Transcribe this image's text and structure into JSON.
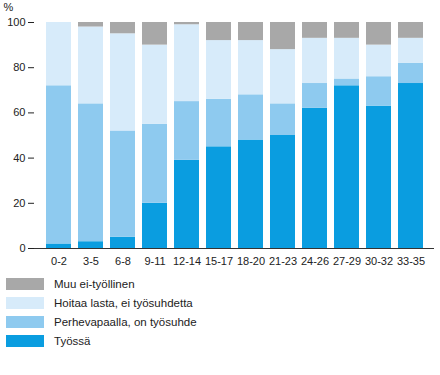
{
  "chart_data": {
    "type": "bar",
    "stacked": true,
    "legend": "bottom",
    "y_label": "%",
    "categories": [
      "0-2",
      "3-5",
      "6-8",
      "9-11",
      "12-14",
      "15-17",
      "18-20",
      "21-23",
      "24-26",
      "27-29",
      "30-32",
      "33-35"
    ],
    "series": [
      {
        "name": "Työssä",
        "color": "#0a9de0",
        "values": [
          2,
          3,
          5,
          20,
          39,
          45,
          48,
          50,
          62,
          72,
          63,
          73
        ]
      },
      {
        "name": "Perhevapaalla, on työsuhde",
        "color": "#8ecaef",
        "values": [
          70,
          61,
          47,
          35,
          26,
          21,
          20,
          14,
          11,
          3,
          13,
          9
        ]
      },
      {
        "name": "Hoitaa lasta, ei työsuhdetta",
        "color": "#d7ebfa",
        "values": [
          28,
          34,
          43,
          35,
          34,
          26,
          24,
          24,
          20,
          18,
          14,
          11
        ]
      },
      {
        "name": "Muu ei-työllinen",
        "color": "#a8a8a8",
        "values": [
          0,
          2,
          5,
          10,
          1,
          8,
          8,
          12,
          7,
          7,
          10,
          7
        ]
      }
    ],
    "ylim": [
      0,
      100
    ],
    "yticks": [
      0,
      20,
      40,
      60,
      80,
      100
    ]
  }
}
